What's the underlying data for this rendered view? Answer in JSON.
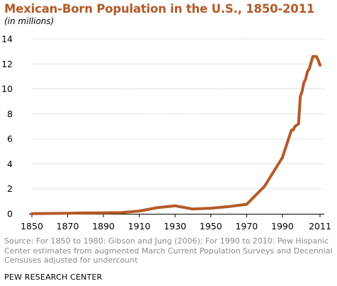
{
  "chart_data": {
    "type": "line",
    "title": "Mexican-Born Population in the U.S., 1850-2011",
    "subtitle": "(in millions)",
    "xlabel": "",
    "ylabel": "",
    "x": [
      1850,
      1860,
      1870,
      1880,
      1890,
      1900,
      1910,
      1920,
      1930,
      1940,
      1950,
      1960,
      1970,
      1980,
      1990,
      1995,
      1996,
      1997,
      1998,
      1999,
      2000,
      2001,
      2002,
      2003,
      2004,
      2005,
      2006,
      2007,
      2008,
      2009,
      2010,
      2011
    ],
    "series": [
      {
        "values": [
          0.01,
          0.03,
          0.04,
          0.07,
          0.08,
          0.1,
          0.22,
          0.49,
          0.64,
          0.38,
          0.45,
          0.58,
          0.76,
          2.2,
          4.5,
          6.7,
          6.7,
          7.0,
          7.1,
          7.2,
          9.4,
          9.8,
          10.5,
          10.8,
          11.4,
          11.6,
          12.1,
          12.6,
          12.6,
          12.6,
          12.3,
          11.9
        ]
      }
    ],
    "x_ticks": [
      "1850",
      "1870",
      "1890",
      "1910",
      "1930",
      "1950",
      "1970",
      "1990",
      "2011"
    ],
    "x_tick_values": [
      1850,
      1870,
      1890,
      1910,
      1930,
      1950,
      1970,
      1990,
      2011
    ],
    "y_ticks": [
      "0",
      "2",
      "4",
      "6",
      "8",
      "10",
      "12",
      "14"
    ],
    "y_tick_values": [
      0,
      2,
      4,
      6,
      8,
      10,
      12,
      14
    ],
    "xlim": [
      1850,
      2011
    ],
    "ylim": [
      0,
      14
    ],
    "grid": "horizontal dotted",
    "line_color": "#b35a28"
  },
  "source_note": "Source: For 1850 to 1980: Gibson and Jung (2006); For 1990 to 2010: Pew Hispanic Center estimates from augmented March Current Population Surveys and Decennial Censuses adjusted for undercount",
  "organization": "PEW RESEARCH CENTER"
}
